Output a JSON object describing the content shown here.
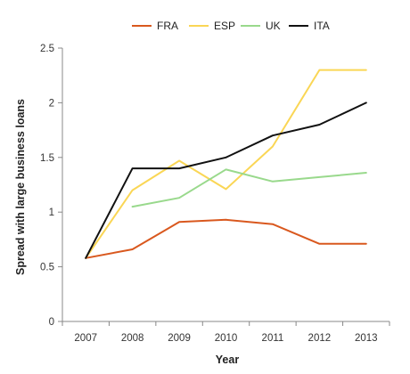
{
  "chart_data": {
    "type": "line",
    "title": "",
    "xlabel": "Year",
    "ylabel": "Spread with large business loans",
    "categories": [
      "2007",
      "2008",
      "2009",
      "2010",
      "2011",
      "2012",
      "2013"
    ],
    "yticks": [
      "0",
      "0.5",
      "1",
      "1.5",
      "2",
      "2.5"
    ],
    "ylim": [
      0,
      2.5
    ],
    "grid": false,
    "legend_position": "top",
    "series": [
      {
        "name": "FRA",
        "color": "#d9581e",
        "values": [
          0.58,
          0.66,
          0.91,
          0.93,
          0.89,
          0.71,
          0.71
        ]
      },
      {
        "name": "ESP",
        "color": "#fad655",
        "values": [
          0.58,
          1.2,
          1.47,
          1.21,
          1.6,
          2.3,
          2.3
        ]
      },
      {
        "name": "UK",
        "color": "#99d98c",
        "values": [
          null,
          1.05,
          1.13,
          1.39,
          1.28,
          1.32,
          1.36
        ]
      },
      {
        "name": "ITA",
        "color": "#111111",
        "values": [
          0.58,
          1.4,
          1.4,
          1.5,
          1.7,
          1.8,
          2.0
        ]
      }
    ]
  }
}
